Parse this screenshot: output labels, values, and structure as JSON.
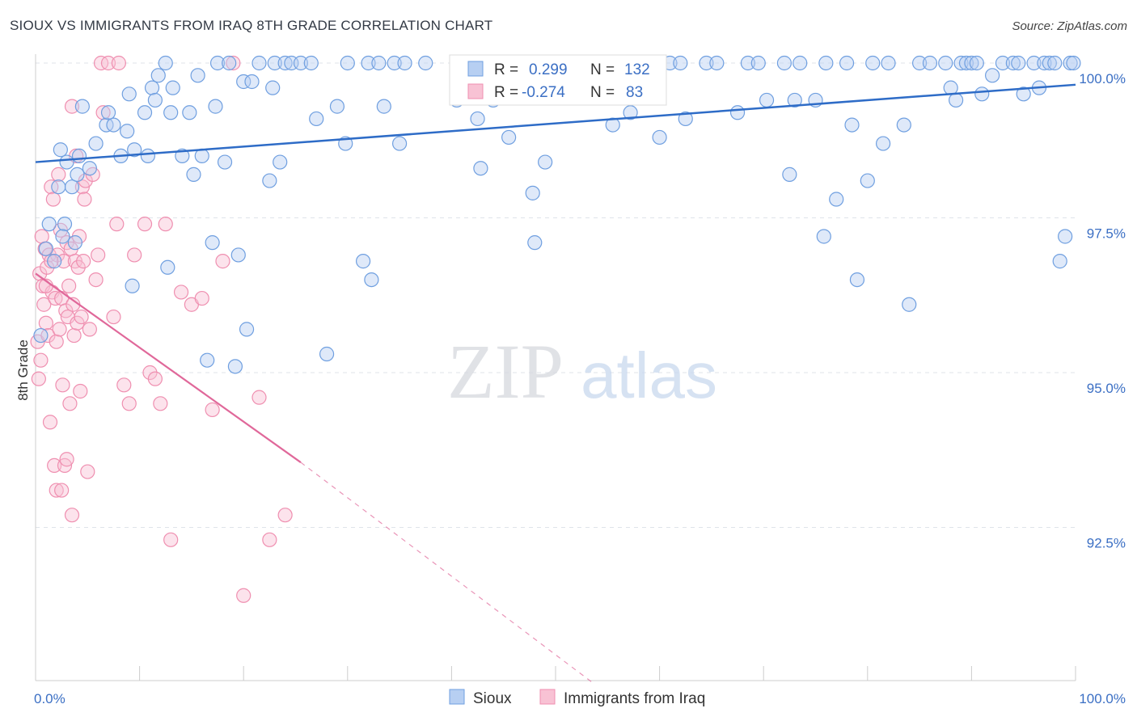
{
  "title": "SIOUX VS IMMIGRANTS FROM IRAQ 8TH GRADE CORRELATION CHART",
  "source": "Source: ZipAtlas.com",
  "watermark": {
    "zip": "ZIP",
    "atlas": "atlas"
  },
  "legend_box": {
    "rows": [
      {
        "r_label": "R =",
        "r_value": "0.299",
        "n_label": "N =",
        "n_value": "132"
      },
      {
        "r_label": "R =",
        "r_value": "-0.274",
        "n_label": "N =",
        "n_value": "83"
      }
    ]
  },
  "colors": {
    "sioux": "#6f9fe0",
    "iraq": "#ef8fb0",
    "sioux_line": "#2e6cc7",
    "iraq_line": "#e0689a",
    "tick_text": "#3b6fc4"
  },
  "chart_data": {
    "type": "scatter",
    "title": "SIOUX VS IMMIGRANTS FROM IRAQ 8TH GRADE CORRELATION CHART",
    "xlabel": "",
    "ylabel": "8th Grade",
    "xlim": [
      0,
      100
    ],
    "ylim": [
      90.0,
      100.5
    ],
    "x_tick_labels": [
      "0.0%",
      "100.0%"
    ],
    "y_ticks": [
      92.5,
      95.0,
      97.5,
      100.0
    ],
    "y_tick_labels": [
      "92.5%",
      "95.0%",
      "97.5%",
      "100.0%"
    ],
    "grid": true,
    "legend_position": "bottom",
    "series": [
      {
        "name": "Sioux",
        "R": 0.299,
        "N": 132,
        "trend": {
          "x0": 0,
          "y0": 98.4,
          "x1": 100,
          "y1": 99.65
        },
        "points": [
          [
            0.5,
            95.6
          ],
          [
            1.0,
            97.0
          ],
          [
            1.3,
            97.4
          ],
          [
            2.2,
            98.0
          ],
          [
            2.4,
            98.6
          ],
          [
            2.8,
            97.4
          ],
          [
            3.5,
            98.0
          ],
          [
            3.8,
            97.1
          ],
          [
            4.0,
            98.2
          ],
          [
            4.2,
            98.5
          ],
          [
            4.5,
            99.3
          ],
          [
            5.2,
            98.3
          ],
          [
            6.8,
            99.0
          ],
          [
            7.5,
            99.0
          ],
          [
            8.2,
            98.5
          ],
          [
            8.8,
            98.9
          ],
          [
            9.3,
            96.4
          ],
          [
            9.5,
            98.6
          ],
          [
            10.5,
            99.2
          ],
          [
            10.8,
            98.5
          ],
          [
            11.2,
            99.6
          ],
          [
            11.5,
            99.4
          ],
          [
            12.5,
            100.0
          ],
          [
            12.7,
            96.7
          ],
          [
            13.0,
            99.2
          ],
          [
            13.2,
            99.6
          ],
          [
            14.1,
            98.5
          ],
          [
            14.8,
            99.2
          ],
          [
            15.2,
            98.2
          ],
          [
            15.6,
            99.8
          ],
          [
            16.0,
            98.5
          ],
          [
            16.5,
            95.2
          ],
          [
            17.0,
            97.1
          ],
          [
            17.3,
            99.3
          ],
          [
            17.5,
            100.0
          ],
          [
            18.2,
            98.4
          ],
          [
            18.6,
            100.0
          ],
          [
            19.2,
            95.1
          ],
          [
            19.5,
            96.9
          ],
          [
            20.0,
            99.7
          ],
          [
            20.3,
            95.7
          ],
          [
            20.8,
            99.7
          ],
          [
            21.5,
            100.0
          ],
          [
            22.5,
            98.1
          ],
          [
            22.8,
            99.6
          ],
          [
            23.0,
            100.0
          ],
          [
            23.5,
            98.4
          ],
          [
            24.0,
            100.0
          ],
          [
            24.6,
            100.0
          ],
          [
            25.5,
            100.0
          ],
          [
            26.5,
            100.0
          ],
          [
            27.0,
            99.1
          ],
          [
            28.0,
            95.3
          ],
          [
            29.0,
            99.3
          ],
          [
            29.8,
            98.7
          ],
          [
            30.0,
            100.0
          ],
          [
            31.5,
            96.8
          ],
          [
            32.0,
            100.0
          ],
          [
            32.3,
            96.5
          ],
          [
            33.0,
            100.0
          ],
          [
            33.5,
            99.3
          ],
          [
            34.5,
            100.0
          ],
          [
            35.0,
            98.7
          ],
          [
            35.5,
            100.0
          ],
          [
            37.5,
            100.0
          ],
          [
            40.5,
            99.4
          ],
          [
            41.0,
            100.0
          ],
          [
            42.5,
            99.1
          ],
          [
            42.8,
            98.3
          ],
          [
            43.5,
            100.0
          ],
          [
            44.0,
            99.4
          ],
          [
            44.5,
            100.0
          ],
          [
            45.5,
            98.8
          ],
          [
            47.3,
            100.0
          ],
          [
            47.8,
            97.9
          ],
          [
            48.0,
            97.1
          ],
          [
            49.0,
            98.4
          ],
          [
            49.8,
            100.0
          ],
          [
            51.5,
            100.0
          ],
          [
            53.0,
            100.0
          ],
          [
            55.5,
            99.0
          ],
          [
            56.0,
            100.0
          ],
          [
            57.2,
            99.2
          ],
          [
            58.5,
            100.0
          ],
          [
            60.0,
            98.8
          ],
          [
            61.0,
            100.0
          ],
          [
            62.0,
            100.0
          ],
          [
            62.5,
            99.1
          ],
          [
            64.5,
            100.0
          ],
          [
            65.5,
            100.0
          ],
          [
            67.5,
            99.2
          ],
          [
            68.5,
            100.0
          ],
          [
            69.5,
            100.0
          ],
          [
            70.3,
            99.4
          ],
          [
            72.0,
            100.0
          ],
          [
            72.5,
            98.2
          ],
          [
            73.0,
            99.4
          ],
          [
            73.5,
            100.0
          ],
          [
            75.0,
            99.4
          ],
          [
            75.8,
            97.2
          ],
          [
            76.0,
            100.0
          ],
          [
            77.0,
            97.8
          ],
          [
            78.0,
            100.0
          ],
          [
            78.5,
            99.0
          ],
          [
            79.0,
            96.5
          ],
          [
            80.0,
            98.1
          ],
          [
            80.5,
            100.0
          ],
          [
            81.5,
            98.7
          ],
          [
            82.0,
            100.0
          ],
          [
            83.5,
            99.0
          ],
          [
            84.0,
            96.1
          ],
          [
            85.0,
            100.0
          ],
          [
            86.0,
            100.0
          ],
          [
            87.5,
            100.0
          ],
          [
            88.0,
            99.6
          ],
          [
            88.5,
            99.4
          ],
          [
            89.0,
            100.0
          ],
          [
            89.5,
            100.0
          ],
          [
            90.0,
            100.0
          ],
          [
            90.5,
            100.0
          ],
          [
            91.0,
            99.5
          ],
          [
            92.0,
            99.8
          ],
          [
            93.0,
            100.0
          ],
          [
            94.0,
            100.0
          ],
          [
            95.0,
            99.5
          ],
          [
            96.0,
            100.0
          ],
          [
            97.0,
            100.0
          ],
          [
            97.5,
            100.0
          ],
          [
            98.0,
            100.0
          ],
          [
            99.0,
            97.2
          ],
          [
            99.5,
            100.0
          ],
          [
            98.5,
            96.8
          ],
          [
            99.8,
            100.0
          ],
          [
            1.8,
            96.8
          ],
          [
            2.6,
            97.2
          ],
          [
            3.0,
            98.4
          ],
          [
            5.8,
            98.7
          ],
          [
            7.0,
            99.2
          ],
          [
            9.0,
            99.5
          ],
          [
            11.8,
            99.8
          ],
          [
            96.5,
            99.6
          ],
          [
            94.5,
            100.0
          ]
        ]
      },
      {
        "name": "Immigrants from Iraq",
        "R": -0.274,
        "N": 83,
        "trend": {
          "x0": 0,
          "y0": 96.6,
          "x1": 25.5,
          "y1": 93.55
        },
        "trend_dashed": {
          "x0": 25.5,
          "y0": 93.55,
          "x1": 53.5,
          "y1": 90.0
        },
        "points": [
          [
            0.2,
            95.5
          ],
          [
            0.3,
            94.9
          ],
          [
            0.4,
            96.6
          ],
          [
            0.5,
            95.2
          ],
          [
            0.6,
            97.2
          ],
          [
            0.7,
            96.4
          ],
          [
            0.8,
            96.1
          ],
          [
            0.9,
            97.0
          ],
          [
            1.0,
            95.8
          ],
          [
            1.1,
            96.7
          ],
          [
            1.2,
            95.6
          ],
          [
            1.3,
            96.9
          ],
          [
            1.4,
            94.2
          ],
          [
            1.5,
            98.0
          ],
          [
            1.6,
            96.3
          ],
          [
            1.7,
            97.8
          ],
          [
            1.8,
            93.5
          ],
          [
            1.9,
            96.2
          ],
          [
            2.0,
            95.5
          ],
          [
            2.1,
            96.9
          ],
          [
            2.2,
            98.2
          ],
          [
            2.3,
            95.7
          ],
          [
            2.4,
            97.3
          ],
          [
            2.5,
            96.2
          ],
          [
            2.6,
            94.8
          ],
          [
            2.7,
            96.8
          ],
          [
            2.8,
            93.5
          ],
          [
            2.9,
            96.0
          ],
          [
            3.0,
            97.1
          ],
          [
            3.1,
            95.9
          ],
          [
            3.2,
            96.4
          ],
          [
            3.3,
            94.5
          ],
          [
            3.4,
            97.0
          ],
          [
            3.5,
            99.3
          ],
          [
            3.6,
            96.1
          ],
          [
            3.7,
            95.6
          ],
          [
            3.8,
            96.8
          ],
          [
            3.9,
            98.5
          ],
          [
            4.0,
            95.8
          ],
          [
            4.1,
            96.7
          ],
          [
            4.2,
            97.2
          ],
          [
            4.3,
            94.7
          ],
          [
            4.4,
            95.9
          ],
          [
            4.5,
            98.0
          ],
          [
            4.6,
            96.8
          ],
          [
            4.7,
            97.8
          ],
          [
            4.8,
            98.1
          ],
          [
            5.0,
            93.4
          ],
          [
            5.2,
            95.7
          ],
          [
            5.5,
            98.2
          ],
          [
            5.8,
            96.5
          ],
          [
            6.0,
            96.9
          ],
          [
            6.3,
            100.0
          ],
          [
            6.5,
            99.2
          ],
          [
            7.0,
            100.0
          ],
          [
            7.5,
            95.9
          ],
          [
            7.8,
            97.4
          ],
          [
            8.0,
            100.0
          ],
          [
            8.5,
            94.8
          ],
          [
            9.0,
            94.5
          ],
          [
            9.5,
            96.9
          ],
          [
            10.5,
            97.4
          ],
          [
            11.0,
            95.0
          ],
          [
            11.5,
            94.9
          ],
          [
            12.0,
            94.5
          ],
          [
            12.5,
            97.4
          ],
          [
            13.0,
            92.3
          ],
          [
            14.0,
            96.3
          ],
          [
            15.0,
            96.1
          ],
          [
            16.0,
            96.2
          ],
          [
            17.0,
            94.4
          ],
          [
            18.0,
            96.8
          ],
          [
            19.0,
            100.0
          ],
          [
            20.0,
            91.4
          ],
          [
            21.5,
            94.6
          ],
          [
            22.5,
            92.3
          ],
          [
            24.0,
            92.7
          ],
          [
            3.0,
            93.6
          ],
          [
            2.0,
            93.1
          ],
          [
            3.5,
            92.7
          ],
          [
            1.0,
            96.4
          ],
          [
            1.5,
            96.8
          ],
          [
            2.5,
            93.1
          ]
        ]
      }
    ]
  },
  "bottom_legend": {
    "items": [
      {
        "label": "Sioux"
      },
      {
        "label": "Immigrants from Iraq"
      }
    ]
  }
}
